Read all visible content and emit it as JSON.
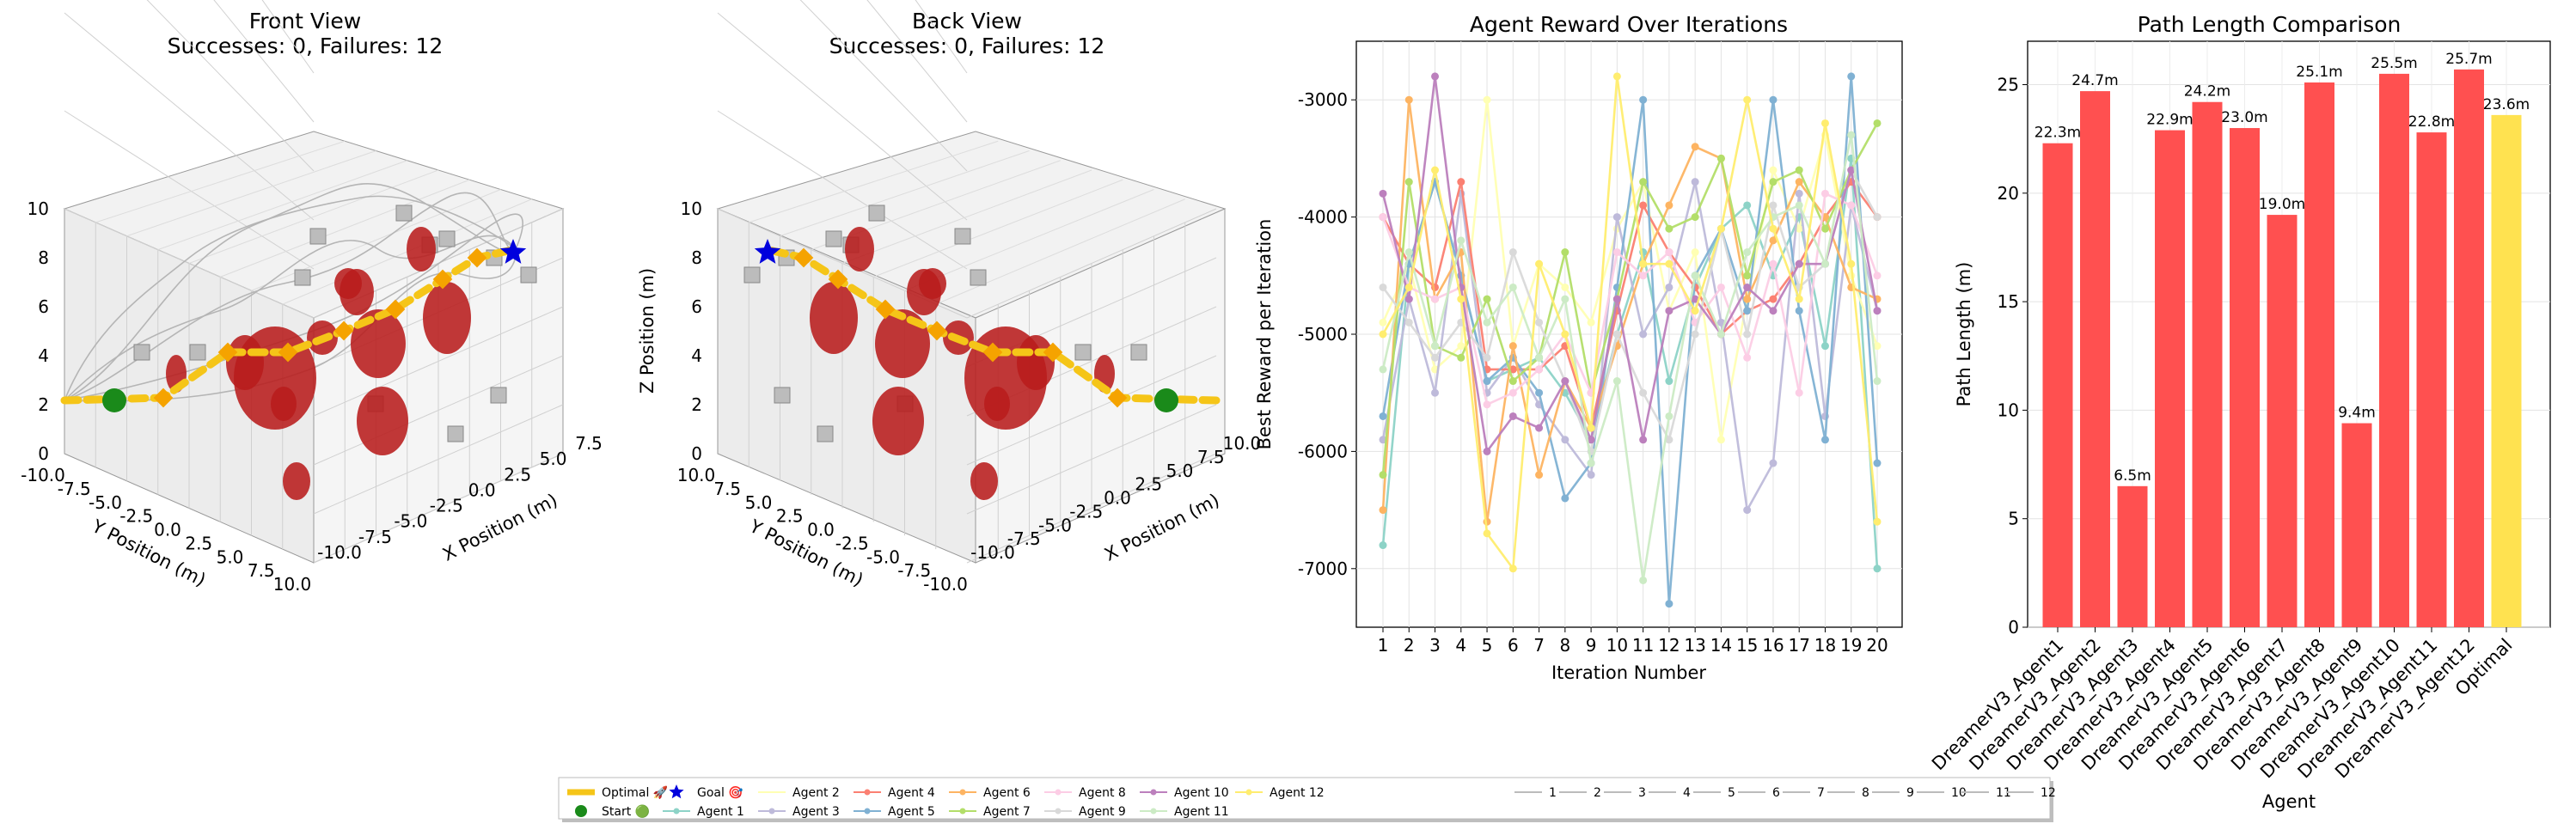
{
  "chart_data": [
    {
      "type": "scatter3d",
      "title": "Front View",
      "subtitle": "Successes: 0, Failures: 12",
      "xlabel": "X Position (m)",
      "ylabel": "Y Position (m)",
      "zlabel": "",
      "xlim": [
        -10,
        10
      ],
      "ylim": [
        -10,
        10
      ],
      "zlim": [
        0,
        10
      ],
      "xticks": [
        "-10.0",
        "-7.5",
        "-5.0",
        "-2.5",
        "0.0",
        "2.5",
        "5.0",
        "7.5"
      ],
      "yticks": [
        "-10.0",
        "-7.5",
        "-5.0",
        "-2.5",
        "0.0",
        "2.5",
        "5.0",
        "7.5",
        "10.0"
      ],
      "zticks": [
        "0",
        "2",
        "4",
        "6",
        "8",
        "10"
      ],
      "start_marker": "green circle",
      "goal_marker": "blue star",
      "optimal_path_color": "#f5c518",
      "obstacle_color": "#b22222"
    },
    {
      "type": "scatter3d",
      "title": "Back View",
      "subtitle": "Successes: 0, Failures: 12",
      "xlabel": "X Position (m)",
      "ylabel": "Y Position (m)",
      "zlabel": "Z Position (m)",
      "xlim": [
        -10,
        10
      ],
      "ylim": [
        -10,
        10
      ],
      "zlim": [
        0,
        10
      ],
      "xticks": [
        "-10.0",
        "-7.5",
        "-5.0",
        "-2.5",
        "0.0",
        "2.5",
        "5.0",
        "7.5",
        "10.0"
      ],
      "yticks": [
        "10.0",
        "7.5",
        "5.0",
        "2.5",
        "0.0",
        "-2.5",
        "-5.0",
        "-7.5",
        "-10.0"
      ],
      "zticks": [
        "0",
        "2",
        "4",
        "6",
        "8",
        "10"
      ]
    },
    {
      "type": "line",
      "title": "Agent Reward Over Iterations",
      "xlabel": "Iteration Number",
      "ylabel": "Best Reward per Iteration",
      "x": [
        1,
        2,
        3,
        4,
        5,
        6,
        7,
        8,
        9,
        10,
        11,
        12,
        13,
        14,
        15,
        16,
        17,
        18,
        19,
        20
      ],
      "ylim": [
        -7500,
        -2500
      ],
      "yticks": [
        "-3000",
        "-4000",
        "-5000",
        "-6000",
        "-7000"
      ],
      "grid": true,
      "series": [
        {
          "name": "Agent 1",
          "color": "#8dd3c7",
          "values": [
            -6800,
            -4400,
            -3700,
            -4500,
            -5400,
            -5300,
            -5200,
            -5500,
            -5900,
            -5000,
            -4300,
            -5400,
            -4600,
            -4100,
            -3900,
            -4500,
            -4000,
            -5100,
            -3500,
            -7000
          ]
        },
        {
          "name": "Agent 2",
          "color": "#ffffb3",
          "values": [
            -4900,
            -4400,
            -5300,
            -5100,
            -3000,
            -5100,
            -4400,
            -4600,
            -4900,
            -4100,
            -3700,
            -4800,
            -4300,
            -5900,
            -4700,
            -3600,
            -4100,
            -3300,
            -4500,
            -5100
          ]
        },
        {
          "name": "Agent 3",
          "color": "#bebada",
          "values": [
            -5900,
            -4700,
            -5500,
            -3800,
            -5500,
            -5200,
            -5600,
            -5900,
            -6200,
            -4000,
            -5000,
            -4600,
            -3700,
            -4900,
            -6500,
            -6100,
            -3800,
            -5700,
            -3900,
            -4800
          ]
        },
        {
          "name": "Agent 4",
          "color": "#fb8072",
          "values": [
            -4000,
            -4400,
            -4600,
            -3700,
            -5300,
            -5300,
            -5300,
            -5100,
            -5800,
            -4800,
            -3900,
            -4300,
            -4600,
            -5000,
            -4800,
            -4700,
            -4400,
            -4000,
            -3700,
            -4000
          ]
        },
        {
          "name": "Agent 5",
          "color": "#80b1d3",
          "values": [
            -5700,
            -4400,
            -3700,
            -4500,
            -5400,
            -5200,
            -5500,
            -6400,
            -6100,
            -4600,
            -3000,
            -7300,
            -4500,
            -4100,
            -4800,
            -3000,
            -4800,
            -5900,
            -2800,
            -6100
          ]
        },
        {
          "name": "Agent 6",
          "color": "#fdb462",
          "values": [
            -6500,
            -3000,
            -4700,
            -4300,
            -6600,
            -5100,
            -6200,
            -5400,
            -5800,
            -5100,
            -4400,
            -3900,
            -3400,
            -3500,
            -4700,
            -4200,
            -3700,
            -4000,
            -4600,
            -4700
          ]
        },
        {
          "name": "Agent 7",
          "color": "#b3de69",
          "values": [
            -6200,
            -3700,
            -5100,
            -5200,
            -4700,
            -5400,
            -5200,
            -4300,
            -5500,
            -4700,
            -3700,
            -4100,
            -4000,
            -3500,
            -4500,
            -3700,
            -3600,
            -4100,
            -3600,
            -3200
          ]
        },
        {
          "name": "Agent 8",
          "color": "#fccde5",
          "values": [
            -4000,
            -4600,
            -4700,
            -4600,
            -5600,
            -5500,
            -5300,
            -5000,
            -5500,
            -4300,
            -4500,
            -4300,
            -4900,
            -4600,
            -5200,
            -4400,
            -5500,
            -3800,
            -3900,
            -4500
          ]
        },
        {
          "name": "Agent 9",
          "color": "#d9d9d9",
          "values": [
            -4600,
            -4900,
            -5200,
            -4900,
            -5200,
            -4300,
            -4900,
            -5400,
            -6000,
            -5000,
            -5500,
            -5900,
            -5000,
            -4100,
            -5000,
            -3900,
            -4600,
            -4400,
            -3600,
            -4000
          ]
        },
        {
          "name": "Agent 10",
          "color": "#bc80bd",
          "values": [
            -3800,
            -4700,
            -2800,
            -4600,
            -6000,
            -5700,
            -5800,
            -5400,
            -5900,
            -4700,
            -5900,
            -4800,
            -4700,
            -5000,
            -4600,
            -4800,
            -4400,
            -4400,
            -3600,
            -4800
          ]
        },
        {
          "name": "Agent 11",
          "color": "#ccebc5",
          "values": [
            -5300,
            -4300,
            -5100,
            -4200,
            -4900,
            -4600,
            -5200,
            -4700,
            -6100,
            -5400,
            -7100,
            -5700,
            -4500,
            -5000,
            -4300,
            -4000,
            -3900,
            -4400,
            -3300,
            -5400
          ]
        },
        {
          "name": "Agent 12",
          "color": "#ffed6f",
          "values": [
            -5000,
            -4600,
            -3600,
            -4700,
            -6700,
            -7000,
            -4400,
            -5000,
            -5800,
            -2800,
            -4400,
            -4400,
            -4800,
            -4100,
            -3000,
            -4100,
            -4700,
            -3200,
            -4400,
            -6600
          ]
        }
      ]
    },
    {
      "type": "bar",
      "title": "Path Length Comparison",
      "xlabel": "Agent",
      "ylabel": "Path Length (m)",
      "ylim": [
        0,
        27
      ],
      "yticks": [
        "0",
        "5",
        "10",
        "15",
        "20",
        "25"
      ],
      "categories": [
        "DreamerV3_Agent1",
        "DreamerV3_Agent2",
        "DreamerV3_Agent3",
        "DreamerV3_Agent4",
        "DreamerV3_Agent5",
        "DreamerV3_Agent6",
        "DreamerV3_Agent7",
        "DreamerV3_Agent8",
        "DreamerV3_Agent9",
        "DreamerV3_Agent10",
        "DreamerV3_Agent11",
        "DreamerV3_Agent12",
        "Optimal"
      ],
      "values": [
        22.3,
        24.7,
        6.5,
        22.9,
        24.2,
        23.0,
        19.0,
        25.1,
        9.4,
        25.5,
        22.8,
        25.7,
        23.6
      ],
      "value_labels": [
        "22.3m",
        "24.7m",
        "6.5m",
        "22.9m",
        "24.2m",
        "23.0m",
        "19.0m",
        "25.1m",
        "9.4m",
        "25.5m",
        "22.8m",
        "25.7m",
        "23.6m"
      ],
      "colors": [
        "#ff4c4c",
        "#ff4c4c",
        "#ff4c4c",
        "#ff4c4c",
        "#ff4c4c",
        "#ff4c4c",
        "#ff4c4c",
        "#ff4c4c",
        "#ff4c4c",
        "#ff4c4c",
        "#ff4c4c",
        "#ff4c4c",
        "#ffe14c"
      ],
      "grid": true
    }
  ],
  "legend": {
    "placement": "bottom-center",
    "items": [
      {
        "label": "Optimal 🚀",
        "kind": "thick-line",
        "color": "#f5c518"
      },
      {
        "label": "Start 🟢",
        "kind": "circle",
        "color": "#1a8a1a"
      },
      {
        "label": "Goal 🎯",
        "kind": "star",
        "color": "#0000dd"
      },
      {
        "label": "Agent 1",
        "kind": "line-dot",
        "color": "#8dd3c7"
      },
      {
        "label": "Agent 2",
        "kind": "line",
        "color": "#ffffb3"
      },
      {
        "label": "Agent 3",
        "kind": "line-dot",
        "color": "#bebada"
      },
      {
        "label": "Agent 4",
        "kind": "line-dot",
        "color": "#fb8072"
      },
      {
        "label": "Agent 5",
        "kind": "line-dot",
        "color": "#80b1d3"
      },
      {
        "label": "Agent 6",
        "kind": "line-dot",
        "color": "#fdb462"
      },
      {
        "label": "Agent 7",
        "kind": "line-dot",
        "color": "#b3de69"
      },
      {
        "label": "Agent 8",
        "kind": "line-dot",
        "color": "#fccde5"
      },
      {
        "label": "Agent 9",
        "kind": "line-dot",
        "color": "#d9d9d9"
      },
      {
        "label": "Agent 10",
        "kind": "line-dot",
        "color": "#bc80bd"
      },
      {
        "label": "Agent 11",
        "kind": "line-dot",
        "color": "#ccebc5"
      },
      {
        "label": "Agent 12",
        "kind": "line-dot",
        "color": "#ffed6f"
      },
      {
        "label": "1",
        "kind": "line",
        "color": "#bbbbbb"
      },
      {
        "label": "2",
        "kind": "line",
        "color": "#bbbbbb"
      },
      {
        "label": "3",
        "kind": "line",
        "color": "#bbbbbb"
      },
      {
        "label": "4",
        "kind": "line",
        "color": "#bbbbbb"
      },
      {
        "label": "5",
        "kind": "line",
        "color": "#bbbbbb"
      },
      {
        "label": "6",
        "kind": "line",
        "color": "#bbbbbb"
      },
      {
        "label": "7",
        "kind": "line",
        "color": "#bbbbbb"
      },
      {
        "label": "8",
        "kind": "line",
        "color": "#bbbbbb"
      },
      {
        "label": "9",
        "kind": "line",
        "color": "#bbbbbb"
      },
      {
        "label": "10",
        "kind": "line",
        "color": "#bbbbbb"
      },
      {
        "label": "11",
        "kind": "line",
        "color": "#bbbbbb"
      },
      {
        "label": "12",
        "kind": "line",
        "color": "#bbbbbb"
      }
    ]
  }
}
